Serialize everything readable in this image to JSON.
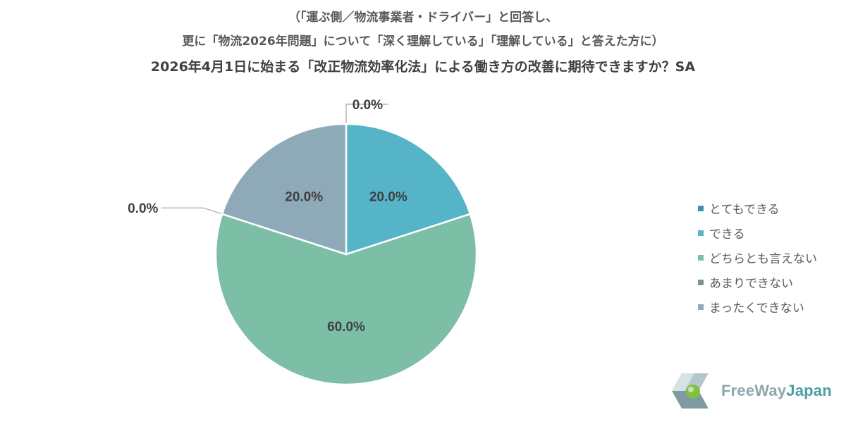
{
  "header": {
    "line1": "（「運ぶ側／物流事業者・ドライバー」と回答し、",
    "line2": "更に「物流2026年問題」について「深く理解している」「理解している」と答えた方に）",
    "line3": "2026年4月1日に始まる「改正物流効率化法」による働き方の改善に期待できますか？SA"
  },
  "chart_data": {
    "type": "pie",
    "title": "2026年4月1日に始まる「改正物流効率化法」による働き方の改善に期待できますか？SA",
    "categories": [
      "とてもできる",
      "できる",
      "どちらとも言えない",
      "あまりできない",
      "まったくできない"
    ],
    "values": [
      0.0,
      20.0,
      60.0,
      0.0,
      20.0
    ],
    "labels": [
      "0.0%",
      "20.0%",
      "60.0%",
      "0.0%",
      "20.0%"
    ],
    "colors": [
      "#3d8fb8",
      "#56b4c8",
      "#7dbfa6",
      "#7f9099",
      "#8eaab8"
    ],
    "legend_position": "right"
  },
  "logo": {
    "part1": "FreeWay",
    "part2": "Japan"
  }
}
